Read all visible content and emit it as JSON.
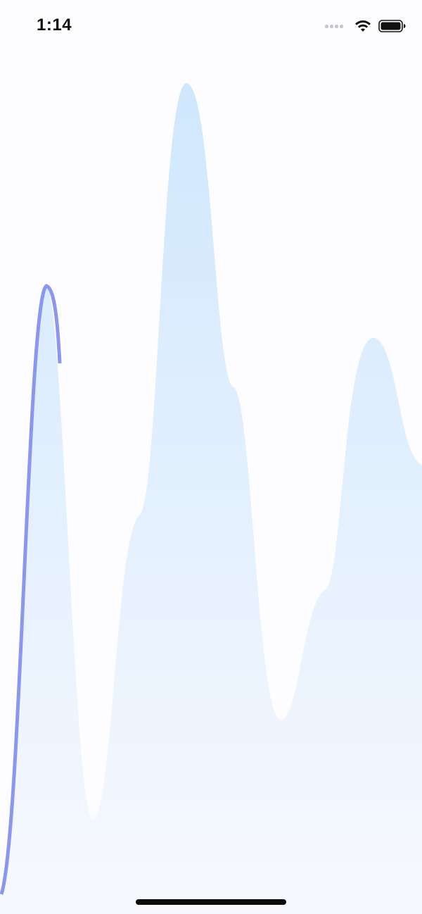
{
  "status_bar": {
    "time": "1:14",
    "icons": [
      "cellular-signal-icon",
      "wifi-icon",
      "battery-icon"
    ]
  },
  "colors": {
    "background": "#fdfcfe",
    "area_top": "#cfe7fd",
    "area_bottom": "#f7f9fe",
    "line": "#8b96f0"
  },
  "chart_data": {
    "type": "area",
    "title": "",
    "xlabel": "",
    "ylabel": "",
    "grid": false,
    "legend": "none",
    "shape": "smooth wave",
    "peaks": 3,
    "progress": 0.14
  }
}
